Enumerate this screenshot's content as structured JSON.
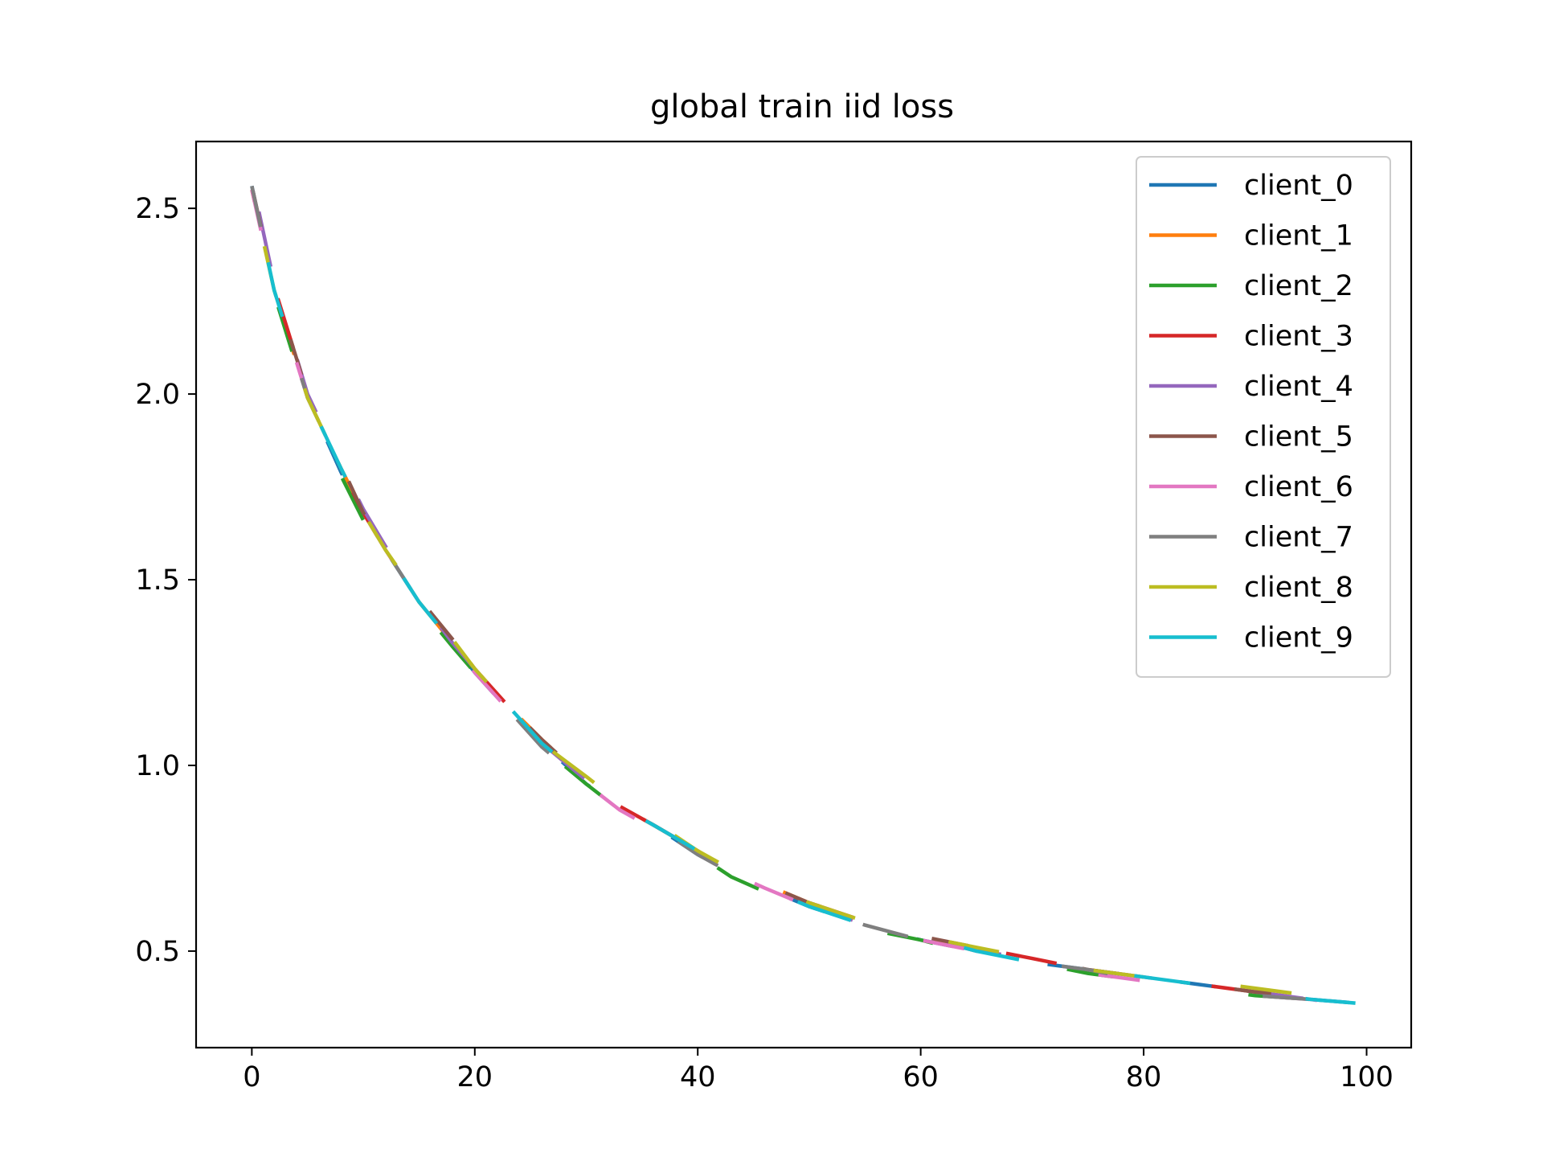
{
  "chart_data": {
    "type": "line",
    "title": "global train iid loss",
    "xlabel": "",
    "ylabel": "",
    "xlim": [
      -5,
      104
    ],
    "ylim": [
      0.24,
      2.68
    ],
    "xticks": [
      0,
      20,
      40,
      60,
      80,
      100
    ],
    "xtick_labels": [
      "0",
      "20",
      "40",
      "60",
      "80",
      "100"
    ],
    "yticks": [
      0.5,
      1.0,
      1.5,
      2.0,
      2.5
    ],
    "ytick_labels": [
      "0.5",
      "1.0",
      "1.5",
      "2.0",
      "2.5"
    ],
    "grid": false,
    "legend_position": "top-right",
    "x": [
      0,
      2,
      5,
      8,
      10,
      12,
      15,
      18,
      20,
      23,
      26,
      30,
      33,
      36,
      40,
      43,
      46,
      50,
      55,
      60,
      65,
      70,
      75,
      80,
      85,
      90,
      95,
      99
    ],
    "series": [
      {
        "name": "client_0",
        "color": "#1f77b4",
        "values": [
          2.56,
          2.28,
          1.99,
          1.79,
          1.67,
          1.58,
          1.44,
          1.33,
          1.25,
          1.15,
          1.06,
          0.95,
          0.89,
          0.84,
          0.76,
          0.71,
          0.67,
          0.62,
          0.57,
          0.53,
          0.5,
          0.47,
          0.45,
          0.43,
          0.41,
          0.39,
          0.37,
          0.36
        ]
      },
      {
        "name": "client_1",
        "color": "#ff7f0e",
        "values": [
          2.55,
          2.28,
          1.99,
          1.8,
          1.68,
          1.58,
          1.44,
          1.33,
          1.26,
          1.16,
          1.07,
          0.96,
          0.89,
          0.84,
          0.77,
          0.72,
          0.68,
          0.63,
          0.58,
          0.54,
          0.5,
          0.48,
          0.45,
          0.43,
          0.41,
          0.39,
          0.37,
          0.36
        ]
      },
      {
        "name": "client_2",
        "color": "#2ca02c",
        "values": [
          2.56,
          2.27,
          1.98,
          1.78,
          1.66,
          1.56,
          1.43,
          1.32,
          1.25,
          1.15,
          1.05,
          0.95,
          0.88,
          0.83,
          0.76,
          0.7,
          0.66,
          0.62,
          0.56,
          0.53,
          0.49,
          0.47,
          0.44,
          0.42,
          0.4,
          0.38,
          0.37,
          0.35
        ]
      },
      {
        "name": "client_3",
        "color": "#d62728",
        "values": [
          2.57,
          2.29,
          2.0,
          1.8,
          1.68,
          1.58,
          1.45,
          1.34,
          1.26,
          1.16,
          1.06,
          0.96,
          0.89,
          0.84,
          0.77,
          0.71,
          0.67,
          0.63,
          0.58,
          0.54,
          0.51,
          0.48,
          0.45,
          0.43,
          0.41,
          0.39,
          0.38,
          0.36
        ]
      },
      {
        "name": "client_4",
        "color": "#9467bd",
        "values": [
          2.58,
          2.3,
          2.0,
          1.81,
          1.69,
          1.59,
          1.45,
          1.33,
          1.26,
          1.16,
          1.06,
          0.96,
          0.89,
          0.84,
          0.77,
          0.71,
          0.67,
          0.63,
          0.57,
          0.54,
          0.5,
          0.48,
          0.45,
          0.43,
          0.41,
          0.39,
          0.37,
          0.36
        ]
      },
      {
        "name": "client_5",
        "color": "#8c564b",
        "values": [
          2.56,
          2.29,
          2.0,
          1.81,
          1.68,
          1.59,
          1.45,
          1.34,
          1.26,
          1.16,
          1.07,
          0.96,
          0.89,
          0.84,
          0.77,
          0.72,
          0.68,
          0.63,
          0.58,
          0.54,
          0.51,
          0.48,
          0.45,
          0.43,
          0.41,
          0.39,
          0.38,
          0.36
        ]
      },
      {
        "name": "client_6",
        "color": "#e377c2",
        "values": [
          2.55,
          2.28,
          1.99,
          1.8,
          1.68,
          1.58,
          1.44,
          1.33,
          1.25,
          1.15,
          1.06,
          0.95,
          0.88,
          0.83,
          0.76,
          0.71,
          0.67,
          0.62,
          0.57,
          0.53,
          0.5,
          0.47,
          0.44,
          0.42,
          0.4,
          0.38,
          0.37,
          0.35
        ]
      },
      {
        "name": "client_7",
        "color": "#7f7f7f",
        "values": [
          2.56,
          2.28,
          1.99,
          1.8,
          1.67,
          1.58,
          1.44,
          1.33,
          1.25,
          1.15,
          1.05,
          0.95,
          0.89,
          0.84,
          0.76,
          0.71,
          0.67,
          0.62,
          0.57,
          0.53,
          0.5,
          0.47,
          0.45,
          0.42,
          0.4,
          0.38,
          0.37,
          0.36
        ]
      },
      {
        "name": "client_8",
        "color": "#bcbd22",
        "values": [
          2.55,
          2.28,
          1.99,
          1.8,
          1.68,
          1.58,
          1.45,
          1.34,
          1.26,
          1.16,
          1.06,
          0.97,
          0.9,
          0.85,
          0.77,
          0.72,
          0.68,
          0.63,
          0.58,
          0.54,
          0.51,
          0.48,
          0.45,
          0.43,
          0.42,
          0.4,
          0.38,
          0.37
        ]
      },
      {
        "name": "client_9",
        "color": "#17becf",
        "values": [
          2.56,
          2.28,
          1.99,
          1.8,
          1.68,
          1.58,
          1.44,
          1.33,
          1.26,
          1.16,
          1.06,
          0.96,
          0.89,
          0.84,
          0.77,
          0.71,
          0.67,
          0.62,
          0.57,
          0.54,
          0.5,
          0.47,
          0.45,
          0.43,
          0.41,
          0.39,
          0.37,
          0.36
        ]
      }
    ]
  }
}
